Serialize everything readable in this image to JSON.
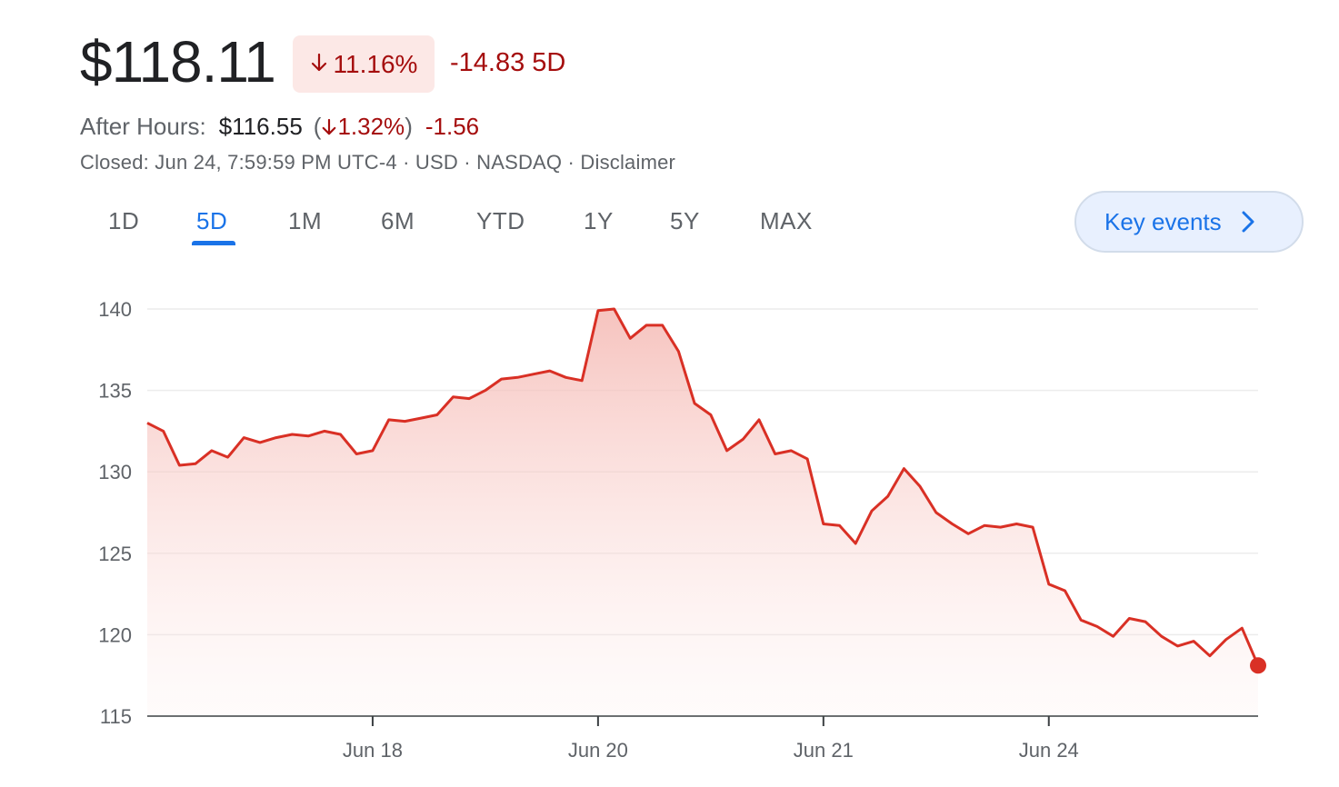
{
  "quote": {
    "price": "$118.11",
    "change_pct": "11.16%",
    "change_abs": "-14.83 5D",
    "after_hours_label": "After Hours:",
    "after_hours_price": "$116.55",
    "after_hours_pct": "1.32%",
    "after_hours_change": "-1.56",
    "closed_line": "Closed: Jun 24, 7:59:59 PM UTC-4 · USD · NASDAQ · Disclaimer"
  },
  "ranges": {
    "tabs": [
      "1D",
      "5D",
      "1M",
      "6M",
      "YTD",
      "1Y",
      "5Y",
      "MAX"
    ],
    "selected": "5D"
  },
  "key_events": {
    "label": "Key events"
  },
  "colors": {
    "accent": "#1a73e8",
    "negative": "#a50e0e",
    "line": "#d93025",
    "area": "#f6c6c2"
  },
  "icons": {
    "arrow_down": "arrow-down-icon",
    "chevron": "chevron-right-icon"
  },
  "chart_data": {
    "type": "area",
    "ylim": [
      115,
      140
    ],
    "yticks": [
      140,
      135,
      130,
      125,
      120,
      115
    ],
    "xticks": [
      {
        "label": "Jun 18",
        "index": 14
      },
      {
        "label": "Jun 20",
        "index": 28
      },
      {
        "label": "Jun 21",
        "index": 42
      },
      {
        "label": "Jun 24",
        "index": 56
      }
    ],
    "grid": true,
    "series": [
      {
        "values": [
          133.0,
          132.5,
          130.4,
          130.5,
          131.3,
          130.9,
          132.1,
          131.8,
          132.1,
          132.3,
          132.2,
          132.5,
          132.3,
          131.1,
          131.3,
          133.2,
          133.1,
          133.3,
          133.5,
          134.6,
          134.5,
          135.0,
          135.7,
          135.8,
          136.0,
          136.2,
          135.8,
          135.6,
          139.9,
          140.0,
          138.2,
          139.0,
          139.0,
          137.4,
          134.2,
          133.5,
          131.3,
          132.0,
          133.2,
          131.1,
          131.3,
          130.8,
          126.8,
          126.7,
          125.6,
          127.6,
          128.5,
          130.2,
          129.1,
          127.5,
          126.8,
          126.2,
          126.7,
          126.6,
          126.8,
          126.6,
          123.1,
          122.7,
          120.9,
          120.5,
          119.9,
          121.0,
          120.8,
          119.9,
          119.3,
          119.6,
          118.7,
          119.7,
          120.4,
          118.11
        ]
      }
    ]
  }
}
